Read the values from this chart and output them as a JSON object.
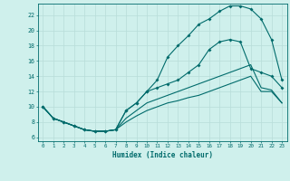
{
  "title": "",
  "xlabel": "Humidex (Indice chaleur)",
  "bg_color": "#cff0ec",
  "line_color": "#006b6b",
  "grid_color": "#b8ddd9",
  "xlim": [
    -0.5,
    23.5
  ],
  "ylim": [
    5.5,
    23.5
  ],
  "xticks": [
    0,
    1,
    2,
    3,
    4,
    5,
    6,
    7,
    8,
    9,
    10,
    11,
    12,
    13,
    14,
    15,
    16,
    17,
    18,
    19,
    20,
    21,
    22,
    23
  ],
  "yticks": [
    6,
    8,
    10,
    12,
    14,
    16,
    18,
    20,
    22
  ],
  "curve1_x": [
    0,
    1,
    2,
    3,
    4,
    5,
    6,
    7,
    8,
    9,
    10,
    11,
    12,
    13,
    14,
    15,
    16,
    17,
    18,
    19,
    20,
    21,
    22,
    23
  ],
  "curve1_y": [
    10.0,
    8.5,
    8.0,
    7.5,
    7.0,
    6.8,
    6.8,
    7.0,
    9.5,
    10.5,
    12.0,
    13.5,
    16.5,
    18.0,
    19.3,
    20.8,
    21.5,
    22.5,
    23.2,
    23.2,
    22.8,
    21.5,
    18.8,
    13.5
  ],
  "curve2_x": [
    0,
    1,
    2,
    3,
    4,
    5,
    6,
    7,
    8,
    9,
    10,
    11,
    12,
    13,
    14,
    15,
    16,
    17,
    18,
    19,
    20,
    21,
    22,
    23
  ],
  "curve2_y": [
    10.0,
    8.5,
    8.0,
    7.5,
    7.0,
    6.8,
    6.8,
    7.0,
    9.5,
    10.5,
    12.0,
    12.5,
    13.0,
    13.5,
    14.5,
    15.5,
    17.5,
    18.5,
    18.8,
    18.5,
    15.0,
    14.5,
    14.0,
    12.5
  ],
  "curve3_x": [
    0,
    1,
    2,
    3,
    4,
    5,
    6,
    7,
    8,
    9,
    10,
    11,
    12,
    13,
    14,
    15,
    16,
    17,
    18,
    19,
    20,
    21,
    22,
    23
  ],
  "curve3_y": [
    10.0,
    8.5,
    8.0,
    7.5,
    7.0,
    6.8,
    6.8,
    7.0,
    8.5,
    9.5,
    10.5,
    11.0,
    11.5,
    12.0,
    12.5,
    13.0,
    13.5,
    14.0,
    14.5,
    15.0,
    15.5,
    12.5,
    12.2,
    10.5
  ],
  "curve4_x": [
    0,
    1,
    2,
    3,
    4,
    5,
    6,
    7,
    8,
    9,
    10,
    11,
    12,
    13,
    14,
    15,
    16,
    17,
    18,
    19,
    20,
    21,
    22,
    23
  ],
  "curve4_y": [
    10.0,
    8.5,
    8.0,
    7.5,
    7.0,
    6.8,
    6.8,
    7.0,
    8.0,
    8.8,
    9.5,
    10.0,
    10.5,
    10.8,
    11.2,
    11.5,
    12.0,
    12.5,
    13.0,
    13.5,
    14.0,
    12.0,
    12.0,
    10.5
  ]
}
